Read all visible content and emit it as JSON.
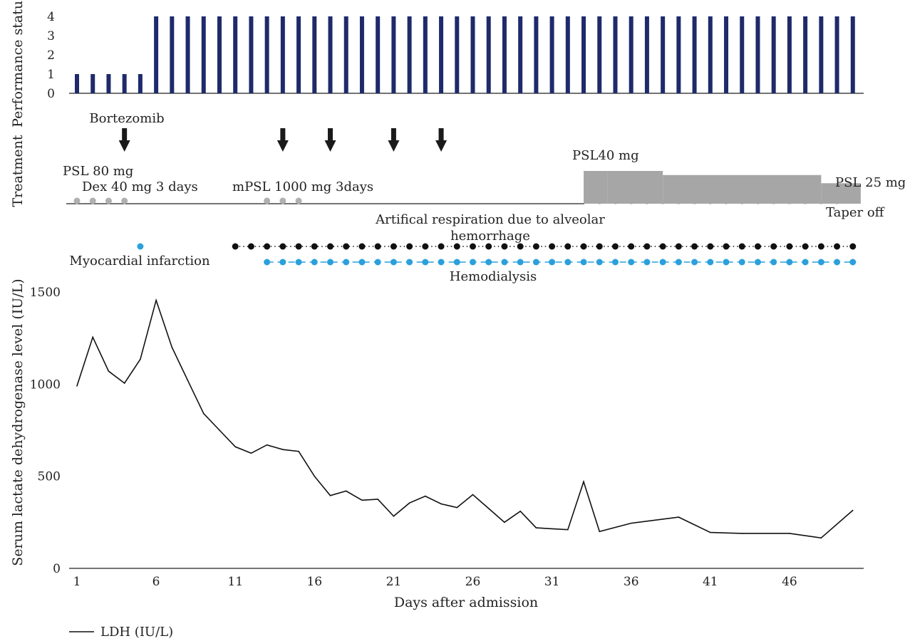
{
  "chart_data": [
    {
      "type": "bar",
      "panel": "performance-status",
      "ylabel": "Performance status",
      "ylim": [
        0,
        4
      ],
      "yticks": [
        0,
        1,
        2,
        3,
        4
      ],
      "x": [
        1,
        2,
        3,
        4,
        5,
        6,
        7,
        8,
        9,
        10,
        11,
        12,
        13,
        14,
        15,
        16,
        17,
        18,
        19,
        20,
        21,
        22,
        23,
        24,
        25,
        26,
        27,
        28,
        29,
        30,
        31,
        32,
        33,
        34,
        35,
        36,
        37,
        38,
        39,
        40,
        41,
        42,
        43,
        44,
        45,
        46,
        47,
        48,
        49,
        50
      ],
      "values": [
        1,
        1,
        1,
        1,
        1,
        4,
        4,
        4,
        4,
        4,
        4,
        4,
        4,
        4,
        4,
        4,
        4,
        4,
        4,
        4,
        4,
        4,
        4,
        4,
        4,
        4,
        4,
        4,
        4,
        4,
        4,
        4,
        4,
        4,
        4,
        4,
        4,
        4,
        4,
        4,
        4,
        4,
        4,
        4,
        4,
        4,
        4,
        4,
        4,
        4
      ],
      "color": "#1f2a6b"
    },
    {
      "type": "timeline",
      "panel": "treatment",
      "ylabel": "Treatment",
      "arrows": [
        {
          "day": 4,
          "label": "Bortezomib"
        },
        {
          "day": 14,
          "label": ""
        },
        {
          "day": 17,
          "label": ""
        },
        {
          "day": 21,
          "label": ""
        },
        {
          "day": 24,
          "label": ""
        }
      ],
      "dot_groups": [
        {
          "label": "PSL 80 mg",
          "label2": "Dex 40 mg 3 days",
          "days": [
            1,
            2,
            3,
            4
          ],
          "color": "#b0b0b0"
        },
        {
          "label": "mPSL 1000 mg 3days",
          "days": [
            13,
            14,
            15
          ],
          "color": "#b0b0b0"
        }
      ],
      "steroid_steps": [
        {
          "start": 33,
          "end": 34.5,
          "dose": 40
        },
        {
          "start": 34.5,
          "end": 38,
          "dose": 40
        },
        {
          "start": 38,
          "end": 48,
          "dose": 35
        },
        {
          "start": 48,
          "end": 50.5,
          "dose": 25
        }
      ],
      "steroid_color": "#a6a6a6",
      "steroid_labels": {
        "start": "PSL40 mg",
        "end": "PSL 25 mg",
        "taper": "Taper off"
      },
      "events": [
        {
          "label": "Myocardial infarction",
          "days": [
            5
          ],
          "color": "#2aa0dc"
        },
        {
          "label": "Artifical respiration due to alveolar",
          "label2": "hemorrhage",
          "days": [
            11,
            12,
            13,
            14,
            15,
            16,
            17,
            18,
            19,
            20,
            21,
            22,
            23,
            24,
            25,
            26,
            27,
            28,
            29,
            30,
            31,
            32,
            33,
            34,
            35,
            36,
            37,
            38,
            39,
            40,
            41,
            42,
            43,
            44,
            45,
            46,
            47,
            48,
            49,
            50
          ],
          "color": "#111111",
          "line": "dotted"
        },
        {
          "label": "Hemodialysis",
          "days": [
            13,
            14,
            15,
            16,
            17,
            18,
            19,
            20,
            21,
            22,
            23,
            24,
            25,
            26,
            27,
            28,
            29,
            30,
            31,
            32,
            33,
            34,
            35,
            36,
            37,
            38,
            39,
            40,
            41,
            42,
            43,
            44,
            45,
            46,
            47,
            48,
            49,
            50
          ],
          "color": "#2aa0dc",
          "line": "dashed"
        }
      ]
    },
    {
      "type": "line",
      "panel": "ldh",
      "xlabel": "Days after admission",
      "ylabel": "Serum lactate dehydrogenase level (IU/L)",
      "ylim": [
        0,
        1500
      ],
      "yticks": [
        0,
        500,
        1000,
        1500
      ],
      "xticks": [
        1,
        6,
        11,
        16,
        21,
        26,
        31,
        36,
        41,
        46
      ],
      "series": [
        {
          "name": "LDH (IU/L)",
          "color": "#111111",
          "x": [
            1,
            2,
            3,
            4,
            5,
            6,
            7,
            8,
            9,
            10,
            11,
            12,
            13,
            14,
            15,
            16,
            17,
            18,
            19,
            20,
            21,
            22,
            23,
            24,
            25,
            26,
            27,
            28,
            29,
            30,
            31,
            32,
            33,
            34,
            36,
            39,
            41,
            43,
            46,
            48,
            50
          ],
          "y": [
            990,
            1255,
            1070,
            1005,
            1135,
            1455,
            1200,
            1020,
            840,
            750,
            660,
            625,
            670,
            645,
            635,
            500,
            395,
            420,
            370,
            375,
            283,
            355,
            392,
            350,
            330,
            400,
            325,
            250,
            310,
            220,
            215,
            210,
            470,
            200,
            245,
            278,
            195,
            190,
            190,
            165,
            315
          ]
        }
      ],
      "legend": "bottom-left"
    }
  ]
}
